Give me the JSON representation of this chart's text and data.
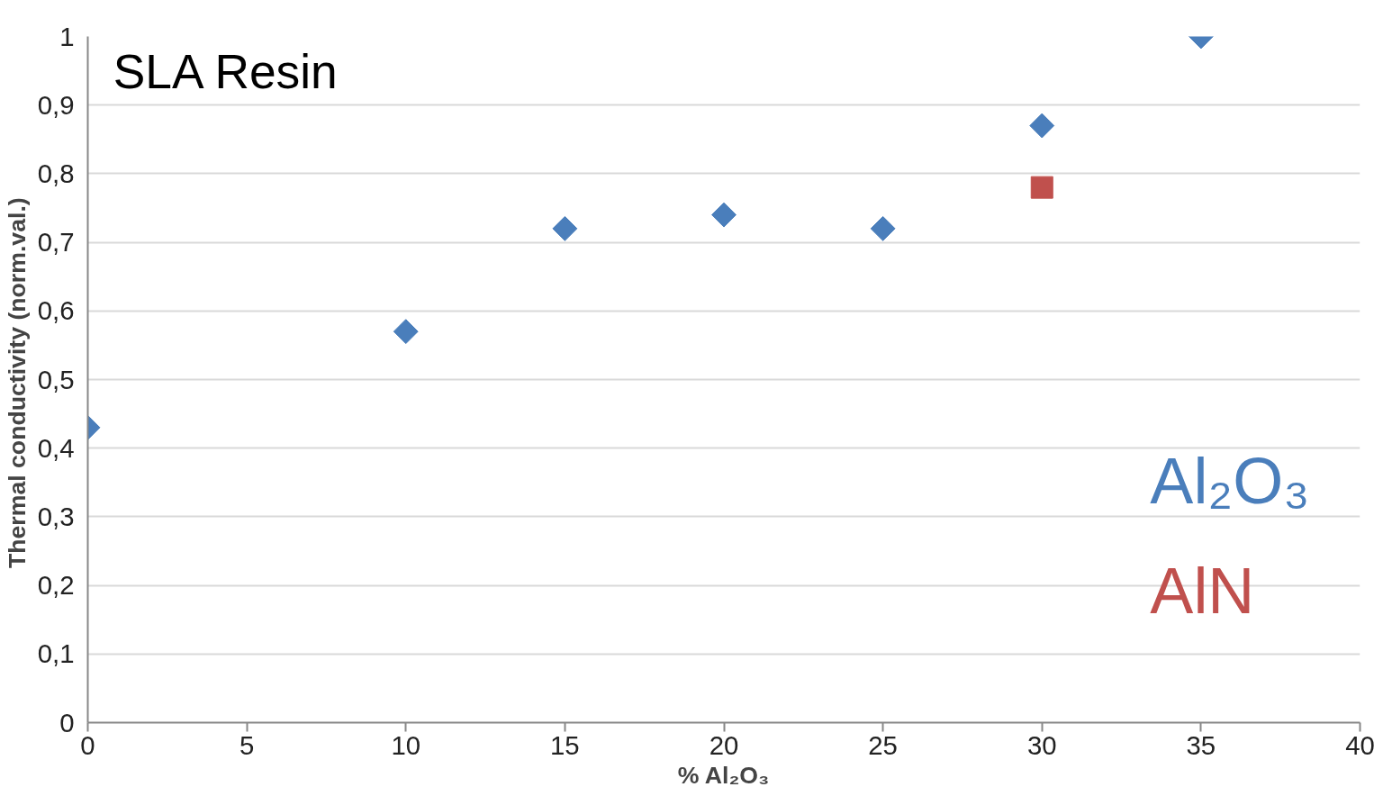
{
  "chart_data": {
    "type": "scatter",
    "xlabel": "% Al₂O₃",
    "ylabel": "Thermal conductivity  (norm.val.)",
    "annotations": [
      "SLA Resin"
    ],
    "xlim": [
      0,
      40
    ],
    "xticks": [
      0,
      5,
      10,
      15,
      20,
      25,
      30,
      35,
      40
    ],
    "ylim": [
      0,
      1
    ],
    "yticks": [
      0,
      {
        "value": 0.1,
        "label": "0,1"
      },
      {
        "value": 0.2,
        "label": "0,2"
      },
      {
        "value": 0.3,
        "label": "0,3"
      },
      {
        "value": 0.4,
        "label": "0,4"
      },
      {
        "value": 0.5,
        "label": "0,5"
      },
      {
        "value": 0.6,
        "label": "0,6"
      },
      {
        "value": 0.7,
        "label": "0,7"
      },
      {
        "value": 0.8,
        "label": "0,8"
      },
      {
        "value": 0.9,
        "label": "0,9"
      },
      1
    ],
    "grid": "y",
    "series": [
      {
        "name": "Al₂O₃",
        "color": "#4a7ebb",
        "marker": "diamond",
        "x": [
          0,
          10,
          15,
          20,
          25,
          30,
          35
        ],
        "values": [
          0.43,
          0.57,
          0.72,
          0.74,
          0.72,
          0.87,
          1.0
        ]
      },
      {
        "name": "AlN",
        "color": "#c0504d",
        "marker": "square",
        "x": [
          30
        ],
        "values": [
          0.78
        ]
      }
    ]
  }
}
